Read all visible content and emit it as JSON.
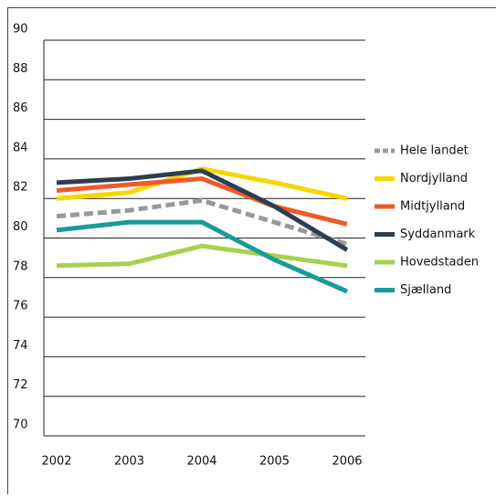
{
  "chart_data": {
    "type": "line",
    "categories": [
      "2002",
      "2003",
      "2004",
      "2005",
      "2006"
    ],
    "series": [
      {
        "name": "Hele landet",
        "color": "#999999",
        "dashed": true,
        "values": [
          81.1,
          81.4,
          81.9,
          80.8,
          79.7
        ]
      },
      {
        "name": "Nordjylland",
        "color": "#f7d600",
        "values": [
          82.0,
          82.3,
          83.5,
          82.8,
          82.0
        ]
      },
      {
        "name": "Midtjylland",
        "color": "#f05a28",
        "values": [
          82.4,
          82.7,
          83.0,
          81.6,
          80.7
        ]
      },
      {
        "name": "Syddanmark",
        "color": "#2d3e50",
        "values": [
          82.8,
          83.0,
          83.4,
          81.6,
          79.4
        ]
      },
      {
        "name": "Hovedstaden",
        "color": "#a8d14f",
        "values": [
          78.6,
          78.7,
          79.6,
          79.1,
          78.6
        ]
      },
      {
        "name": "Sjælland",
        "color": "#1a9a9a",
        "values": [
          80.4,
          80.8,
          80.8,
          78.9,
          77.3
        ]
      }
    ],
    "ylim": [
      70,
      90
    ],
    "yticks": [
      70,
      72,
      74,
      76,
      78,
      80,
      82,
      84,
      86,
      88,
      90
    ],
    "grid": true,
    "legend": "right"
  }
}
